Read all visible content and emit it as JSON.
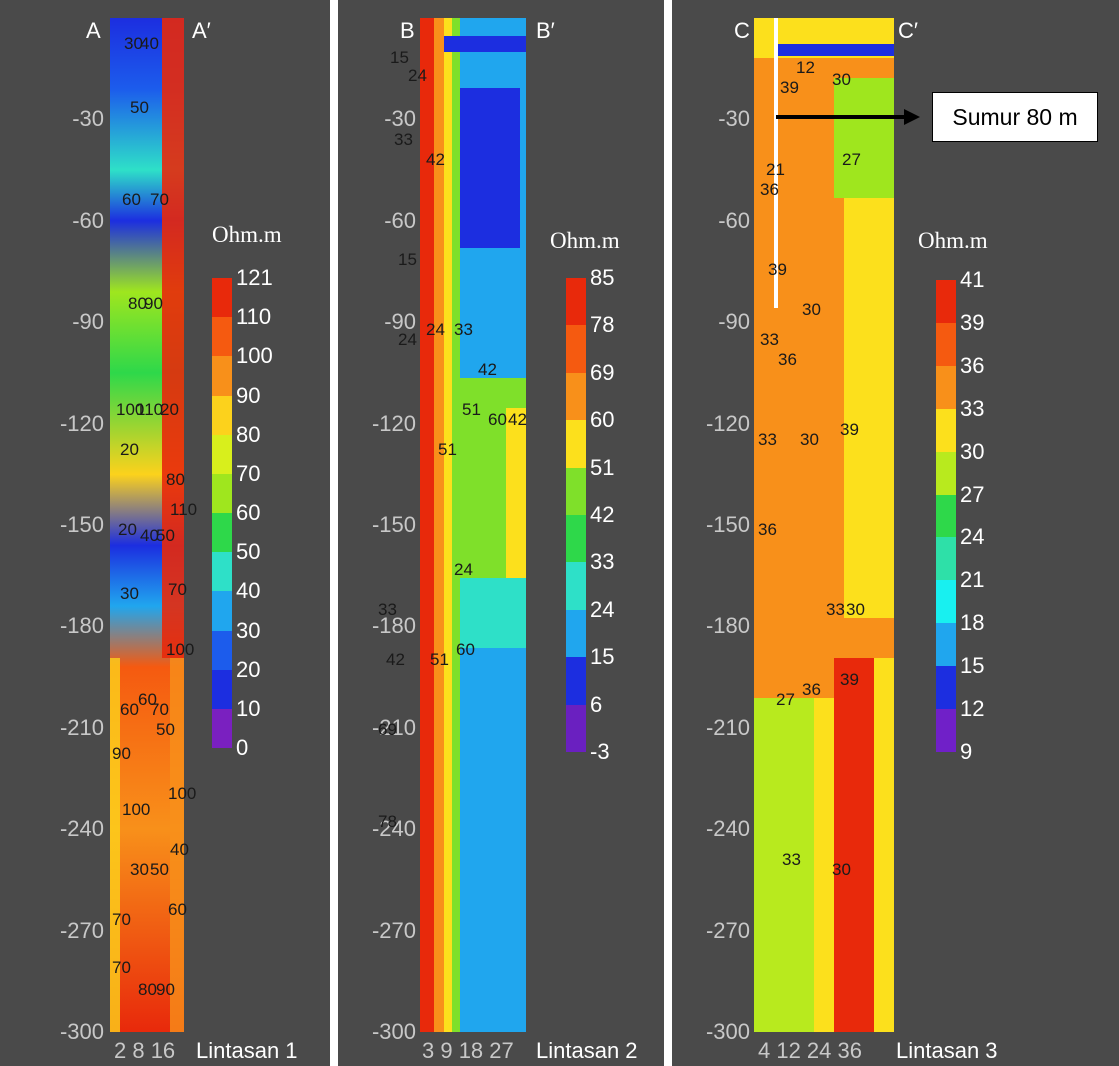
{
  "chart_data": [
    {
      "type": "heatmap",
      "section_left": "A",
      "section_right": "A′",
      "panel_label": "Lintasan 1",
      "unit": "Ohm.m",
      "y_ticks": [
        "-30",
        "-60",
        "-90",
        "-120",
        "-150",
        "-180",
        "-210",
        "-240",
        "-270",
        "-300"
      ],
      "x_ticks": "2 8 16",
      "ylim": [
        -300,
        0
      ],
      "colorbar_labels": [
        "121",
        "110",
        "100",
        "90",
        "80",
        "70",
        "60",
        "50",
        "40",
        "30",
        "20",
        "10",
        "0"
      ],
      "colorbar_colors": [
        "#e8290b",
        "#f55a10",
        "#f8901a",
        "#fcd21c",
        "#d8ef1c",
        "#9fe61e",
        "#2ed84a",
        "#2ee0c8",
        "#20a6ee",
        "#1c5cec",
        "#1c2ee0",
        "#7a20c0"
      ],
      "contour_labels": [
        "30",
        "40",
        "50",
        "60",
        "70",
        "80",
        "90",
        "100",
        "110",
        "20",
        "20",
        "20",
        "30",
        "40",
        "50",
        "60",
        "70",
        "100",
        "110",
        "70",
        "80",
        "90",
        "100",
        "60",
        "50",
        "100",
        "30",
        "40",
        "50",
        "60",
        "70",
        "80",
        "90",
        "70"
      ]
    },
    {
      "type": "heatmap",
      "section_left": "B",
      "section_right": "B′",
      "panel_label": "Lintasan 2",
      "unit": "Ohm.m",
      "y_ticks": [
        "-30",
        "-60",
        "-90",
        "-120",
        "-150",
        "-180",
        "-210",
        "-240",
        "-270",
        "-300"
      ],
      "x_ticks": "3 9 18 27",
      "ylim": [
        -300,
        0
      ],
      "colorbar_labels": [
        "85",
        "78",
        "69",
        "60",
        "51",
        "42",
        "33",
        "24",
        "15",
        "6",
        "-3"
      ],
      "colorbar_colors": [
        "#e8290b",
        "#f55a10",
        "#f8901a",
        "#fce01c",
        "#7fe02a",
        "#2ed84a",
        "#2ee0c8",
        "#20a6ee",
        "#1c2ee0",
        "#6a20c0"
      ],
      "contour_labels": [
        "15",
        "24",
        "33",
        "42",
        "15",
        "24",
        "24",
        "33",
        "42",
        "51",
        "60",
        "42",
        "51",
        "24",
        "33",
        "42",
        "51",
        "60",
        "69",
        "78"
      ]
    },
    {
      "type": "heatmap",
      "section_left": "C",
      "section_right": "C′",
      "panel_label": "Lintasan 3",
      "unit": "Ohm.m",
      "annotation": "Sumur 80 m",
      "y_ticks": [
        "-30",
        "-60",
        "-90",
        "-120",
        "-150",
        "-180",
        "-210",
        "-240",
        "-270",
        "-300"
      ],
      "x_ticks": "4 12 24 36",
      "ylim": [
        -300,
        0
      ],
      "colorbar_labels": [
        "41",
        "39",
        "36",
        "33",
        "30",
        "27",
        "24",
        "21",
        "18",
        "15",
        "12",
        "9"
      ],
      "colorbar_colors": [
        "#e8290b",
        "#f55a10",
        "#f8901a",
        "#fce01c",
        "#b8ea1e",
        "#2ed84a",
        "#2ee0a8",
        "#18f0f0",
        "#20a6ee",
        "#1c2ee0",
        "#7020c8"
      ],
      "contour_labels": [
        "12",
        "39",
        "30",
        "27",
        "21",
        "36",
        "39",
        "33",
        "30",
        "36",
        "33",
        "30",
        "39",
        "36",
        "33",
        "30",
        "27",
        "36",
        "39",
        "33",
        "30"
      ]
    }
  ]
}
